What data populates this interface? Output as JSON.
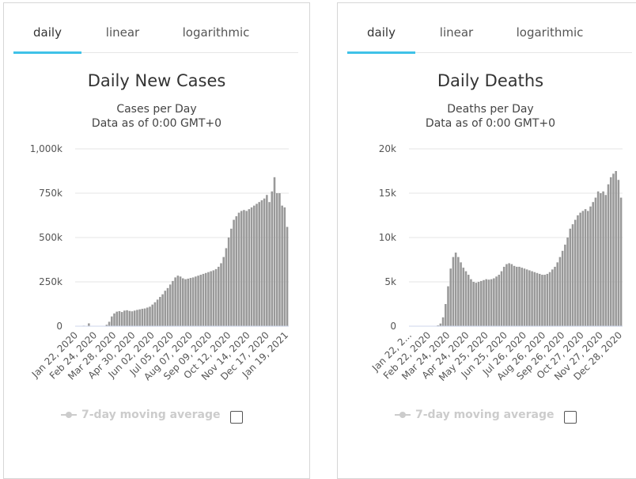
{
  "panels": [
    {
      "tabs": [
        "daily",
        "linear",
        "logarithmic"
      ],
      "active_tab": "daily",
      "legend_label": "7-day moving average",
      "chart_data": {
        "type": "bar",
        "title": "Daily New Cases",
        "subtitle_lines": [
          "Cases per Day",
          "Data as of 0:00 GMT+0"
        ],
        "ylim": [
          0,
          1000000
        ],
        "yticks": [
          0,
          250000,
          500000,
          750000,
          1000000
        ],
        "ytick_labels": [
          "0",
          "250k",
          "500k",
          "750k",
          "1,000k"
        ],
        "xtick_labels": [
          "Jan 22, 2020",
          "Feb 24, 2020",
          "Mar 28, 2020",
          "Apr 30, 2020",
          "Jun 02, 2020",
          "Jul 05, 2020",
          "Aug 07, 2020",
          "Sep 09, 2020",
          "Oct 12, 2020",
          "Nov 14, 2020",
          "Dec 17, 2020",
          "Jan 19, 2021"
        ],
        "grid": true,
        "bar_color": "#999999",
        "series": [
          {
            "values": [
              0,
              0,
              0,
              3000,
              0,
              16000,
              1000,
              0,
              0,
              0,
              0,
              0,
              8000,
              25000,
              55000,
              72000,
              82000,
              85000,
              80000,
              88000,
              90000,
              86000,
              84000,
              88000,
              92000,
              95000,
              98000,
              100000,
              105000,
              110000,
              122000,
              135000,
              150000,
              165000,
              180000,
              200000,
              215000,
              235000,
              255000,
              275000,
              285000,
              280000,
              270000,
              265000,
              268000,
              272000,
              275000,
              280000,
              285000,
              290000,
              295000,
              300000,
              305000,
              310000,
              315000,
              322000,
              335000,
              355000,
              390000,
              440000,
              500000,
              550000,
              600000,
              620000,
              640000,
              650000,
              655000,
              650000,
              660000,
              670000,
              680000,
              690000,
              700000,
              710000,
              720000,
              740000,
              700000,
              760000,
              840000,
              750000,
              750000,
              680000,
              670000,
              560000
            ]
          }
        ]
      }
    },
    {
      "tabs": [
        "daily",
        "linear",
        "logarithmic"
      ],
      "active_tab": "daily",
      "legend_label": "7-day moving average",
      "chart_data": {
        "type": "bar",
        "title": "Daily Deaths",
        "subtitle_lines": [
          "Deaths per Day",
          "Data as of 0:00 GMT+0"
        ],
        "ylim": [
          0,
          20000
        ],
        "yticks": [
          0,
          5000,
          10000,
          15000,
          20000
        ],
        "ytick_labels": [
          "0",
          "5k",
          "10k",
          "15k",
          "20k"
        ],
        "xtick_labels": [
          "Jan 22, 2...",
          "Feb 22, 2020",
          "Mar 24, 2020",
          "Apr 24, 2020",
          "May 25, 2020",
          "Jun 25, 2020",
          "Jul 26, 2020",
          "Aug 26, 2020",
          "Sep 26, 2020",
          "Oct 27, 2020",
          "Nov 27, 2020",
          "Dec 28, 2020"
        ],
        "grid": true,
        "bar_color": "#999999",
        "series": [
          {
            "values": [
              0,
              0,
              0,
              0,
              0,
              0,
              0,
              0,
              0,
              0,
              0,
              100,
              300,
              1000,
              2500,
              4500,
              6500,
              7800,
              8300,
              7800,
              7200,
              6600,
              6200,
              5800,
              5300,
              5000,
              4900,
              5000,
              5100,
              5200,
              5300,
              5250,
              5300,
              5400,
              5600,
              5800,
              6200,
              6700,
              7000,
              7100,
              7000,
              6800,
              6700,
              6700,
              6600,
              6500,
              6400,
              6300,
              6200,
              6100,
              6000,
              5900,
              5800,
              5800,
              5900,
              6100,
              6400,
              6700,
              7200,
              7800,
              8500,
              9200,
              10000,
              11000,
              11500,
              12000,
              12500,
              12800,
              13000,
              13200,
              13000,
              13500,
              14000,
              14500,
              15200,
              15000,
              15200,
              14800,
              16000,
              16800,
              17200,
              17500,
              16500,
              14500
            ]
          }
        ]
      }
    }
  ]
}
